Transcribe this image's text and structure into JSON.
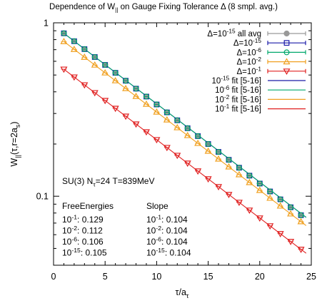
{
  "chart_data": {
    "type": "scatter",
    "title_parts": {
      "pre": "Dependence of W",
      "sub": "||",
      "post": " on Gauge Fixing Tolerance Δ (8 smpl. avg.)"
    },
    "xlabel": {
      "main": "τ/a",
      "sub": "τ"
    },
    "ylabel": {
      "main": "W",
      "sub1": "||",
      "mid": "(τ,r=2a",
      "sub2": "s",
      "end": ")"
    },
    "xlim": [
      0,
      25
    ],
    "ylim": [
      0.04,
      1
    ],
    "yscale": "log",
    "xticks": [
      0,
      5,
      10,
      15,
      20,
      25
    ],
    "yticks": [
      {
        "value": 1,
        "label": "1"
      },
      {
        "value": 0.1,
        "label": "0.1"
      }
    ],
    "grid": false,
    "legend_position": "top-right",
    "legend": [
      {
        "pre": "Δ=10",
        "sup": "-15",
        "post": " all avg",
        "color": "#999999",
        "marker": "filled-circle"
      },
      {
        "pre": "Δ=10",
        "sup": "-15",
        "post": "",
        "color": "#1a1aa8",
        "marker": "open-square"
      },
      {
        "pre": "Δ=10",
        "sup": "-6",
        "post": "",
        "color": "#00a86b",
        "marker": "open-circle"
      },
      {
        "pre": "Δ=10",
        "sup": "-2",
        "post": "",
        "color": "#f0a020",
        "marker": "open-triangle-up"
      },
      {
        "pre": "Δ=10",
        "sup": "-1",
        "post": "",
        "color": "#e02020",
        "marker": "open-triangle-down"
      },
      {
        "pre": "10",
        "sup": "-15",
        "post": " fit [5-16]",
        "color": "#1a1aa8",
        "marker": "line"
      },
      {
        "pre": "10",
        "sup": "-6",
        "post": " fit [5-16]",
        "color": "#00a86b",
        "marker": "line"
      },
      {
        "pre": "10",
        "sup": "-2",
        "post": " fit [5-16]",
        "color": "#f0a020",
        "marker": "line"
      },
      {
        "pre": "10",
        "sup": "-1",
        "post": " fit [5-16]",
        "color": "#e02020",
        "marker": "line"
      }
    ],
    "series": [
      {
        "color": "#999999",
        "marker": "filled-circle",
        "x_start": 1,
        "x_end": 24,
        "y_at_1": 0.87,
        "slope": 0.105
      },
      {
        "color": "#1a1aa8",
        "marker": "open-square",
        "x_start": 1,
        "x_end": 24,
        "y_at_1": 0.87,
        "slope": 0.105
      },
      {
        "color": "#00a86b",
        "marker": "open-circle",
        "x_start": 1,
        "x_end": 24,
        "y_at_1": 0.87,
        "slope": 0.105
      },
      {
        "color": "#f0a020",
        "marker": "open-triangle-up",
        "x_start": 1,
        "x_end": 24,
        "y_at_1": 0.78,
        "slope": 0.104
      },
      {
        "color": "#e02020",
        "marker": "open-triangle-down",
        "x_start": 1,
        "x_end": 24,
        "y_at_1": 0.54,
        "slope": 0.104
      }
    ],
    "fits": [
      {
        "color": "#1a1aa8",
        "y_at_1": 0.87,
        "slope": 0.104,
        "x_range": [
          1,
          24.5
        ]
      },
      {
        "color": "#00a86b",
        "y_at_1": 0.87,
        "slope": 0.104,
        "x_range": [
          1,
          24.5
        ]
      },
      {
        "color": "#f0a020",
        "y_at_1": 0.78,
        "slope": 0.104,
        "x_range": [
          1,
          24.5
        ]
      },
      {
        "color": "#e02020",
        "y_at_1": 0.54,
        "slope": 0.104,
        "x_range": [
          1,
          24.5
        ]
      }
    ],
    "annotations": {
      "system": {
        "pre": "SU(3) N",
        "sub": "τ",
        "post": "=24 T=839MeV"
      },
      "col1_header": "FreeEnergies",
      "col2_header": "Slope",
      "rows": [
        {
          "base": "10",
          "exp": "-1",
          "fe": ": 0.129",
          "slope": ": 0.104"
        },
        {
          "base": "10",
          "exp": "-2",
          "fe": ": 0.112",
          "slope": ": 0.104"
        },
        {
          "base": "10",
          "exp": "-6",
          "fe": ": 0.106",
          "slope": ": 0.104"
        },
        {
          "base": "10",
          "exp": "-15",
          "fe": ": 0.105",
          "slope": ": 0.104"
        }
      ]
    }
  }
}
